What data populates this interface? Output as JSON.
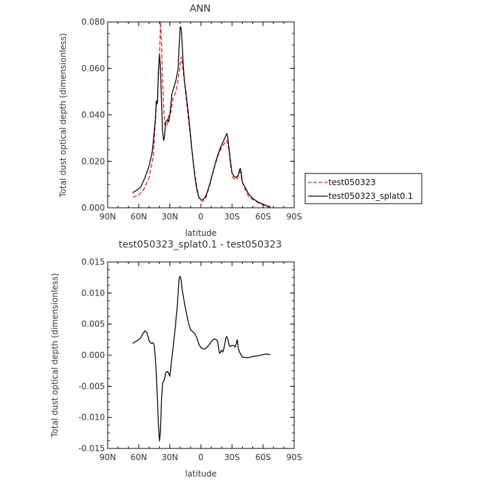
{
  "chart_data": [
    {
      "type": "line",
      "title": "ANN",
      "xlabel": "latitude",
      "ylabel": "Total dust optical depth (dimensionless)",
      "xlim": [
        90,
        -90
      ],
      "ylim": [
        0,
        0.08
      ],
      "x_ticks": [
        {
          "value": 90,
          "label": "90N"
        },
        {
          "value": 60,
          "label": "60N"
        },
        {
          "value": 30,
          "label": "30N"
        },
        {
          "value": 0,
          "label": "0"
        },
        {
          "value": -30,
          "label": "30S"
        },
        {
          "value": -60,
          "label": "60S"
        },
        {
          "value": -90,
          "label": "90S"
        }
      ],
      "y_ticks": [
        {
          "value": 0,
          "label": "0.000"
        },
        {
          "value": 0.02,
          "label": "0.020"
        },
        {
          "value": 0.04,
          "label": "0.040"
        },
        {
          "value": 0.06,
          "label": "0.060"
        },
        {
          "value": 0.08,
          "label": "0.080"
        }
      ],
      "legend": {
        "placement": "right"
      },
      "series": [
        {
          "name": "test050323",
          "color": "#e8131b",
          "dash": "dashed",
          "points": [
            [
              66,
              0.0045
            ],
            [
              60,
              0.0055
            ],
            [
              55,
              0.008
            ],
            [
              50,
              0.013
            ],
            [
              46,
              0.022
            ],
            [
              43,
              0.044
            ],
            [
              42,
              0.046
            ],
            [
              40,
              0.066
            ],
            [
              39,
              0.08
            ],
            [
              38,
              0.07
            ],
            [
              37,
              0.055
            ],
            [
              36,
              0.043
            ],
            [
              35,
              0.036
            ],
            [
              33,
              0.035
            ],
            [
              31,
              0.04
            ],
            [
              29,
              0.041
            ],
            [
              27,
              0.047
            ],
            [
              24,
              0.05
            ],
            [
              22,
              0.055
            ],
            [
              20,
              0.062
            ],
            [
              19,
              0.065
            ],
            [
              18,
              0.062
            ],
            [
              16,
              0.055
            ],
            [
              14,
              0.046
            ],
            [
              12,
              0.038
            ],
            [
              10,
              0.03
            ],
            [
              8,
              0.022
            ],
            [
              6,
              0.015
            ],
            [
              4,
              0.009
            ],
            [
              2,
              0.0045
            ],
            [
              0,
              0.003
            ],
            [
              -2,
              0.0028
            ],
            [
              -5,
              0.0045
            ],
            [
              -8,
              0.009
            ],
            [
              -11,
              0.014
            ],
            [
              -14,
              0.019
            ],
            [
              -17,
              0.023
            ],
            [
              -20,
              0.026
            ],
            [
              -23,
              0.028
            ],
            [
              -25,
              0.029
            ],
            [
              -27,
              0.025
            ],
            [
              -29,
              0.017
            ],
            [
              -31,
              0.013
            ],
            [
              -33,
              0.012
            ],
            [
              -35,
              0.0125
            ],
            [
              -37,
              0.015
            ],
            [
              -38,
              0.0155
            ],
            [
              -40,
              0.011
            ],
            [
              -43,
              0.0075
            ],
            [
              -46,
              0.005
            ],
            [
              -50,
              0.0035
            ],
            [
              -55,
              0.0022
            ],
            [
              -60,
              0.0012
            ],
            [
              -64,
              0.0005
            ],
            [
              -67,
              0.0002
            ]
          ]
        },
        {
          "name": "test050323_splat0.1",
          "color": "#000000",
          "dash": "solid",
          "points": [
            [
              66,
              0.0065
            ],
            [
              62,
              0.0075
            ],
            [
              58,
              0.009
            ],
            [
              54,
              0.013
            ],
            [
              50,
              0.018
            ],
            [
              47,
              0.024
            ],
            [
              45,
              0.033
            ],
            [
              44,
              0.038
            ],
            [
              43,
              0.046
            ],
            [
              42,
              0.045
            ],
            [
              41,
              0.058
            ],
            [
              40,
              0.066
            ],
            [
              39,
              0.06
            ],
            [
              38,
              0.045
            ],
            [
              37,
              0.033
            ],
            [
              36,
              0.029
            ],
            [
              35,
              0.031
            ],
            [
              34,
              0.037
            ],
            [
              32,
              0.038
            ],
            [
              31,
              0.037
            ],
            [
              30,
              0.04
            ],
            [
              28,
              0.049
            ],
            [
              26,
              0.052
            ],
            [
              24,
              0.055
            ],
            [
              22,
              0.06
            ],
            [
              21,
              0.07
            ],
            [
              20,
              0.078
            ],
            [
              19,
              0.077
            ],
            [
              18,
              0.07
            ],
            [
              17,
              0.061
            ],
            [
              16,
              0.055
            ],
            [
              14,
              0.048
            ],
            [
              12,
              0.04
            ],
            [
              10,
              0.031
            ],
            [
              8,
              0.022
            ],
            [
              6,
              0.014
            ],
            [
              4,
              0.008
            ],
            [
              2,
              0.0045
            ],
            [
              0,
              0.0035
            ],
            [
              -2,
              0.0035
            ],
            [
              -4,
              0.0045
            ],
            [
              -6,
              0.0065
            ],
            [
              -9,
              0.011
            ],
            [
              -12,
              0.016
            ],
            [
              -15,
              0.021
            ],
            [
              -18,
              0.025
            ],
            [
              -21,
              0.028
            ],
            [
              -24,
              0.031
            ],
            [
              -25,
              0.032
            ],
            [
              -26,
              0.03
            ],
            [
              -28,
              0.022
            ],
            [
              -30,
              0.015
            ],
            [
              -32,
              0.0135
            ],
            [
              -34,
              0.013
            ],
            [
              -36,
              0.014
            ],
            [
              -37,
              0.016
            ],
            [
              -38,
              0.017
            ],
            [
              -39,
              0.015
            ],
            [
              -40,
              0.011
            ],
            [
              -43,
              0.0085
            ],
            [
              -46,
              0.006
            ],
            [
              -50,
              0.004
            ],
            [
              -55,
              0.0025
            ],
            [
              -60,
              0.0015
            ],
            [
              -64,
              0.0008
            ],
            [
              -67,
              0.0004
            ]
          ]
        }
      ]
    },
    {
      "type": "line",
      "title": "test050323_splat0.1 - test050323",
      "xlabel": "latitude",
      "ylabel": "Total dust optical depth (dimensionless)",
      "xlim": [
        90,
        -90
      ],
      "ylim": [
        -0.015,
        0.015
      ],
      "x_ticks": [
        {
          "value": 90,
          "label": "90N"
        },
        {
          "value": 60,
          "label": "60N"
        },
        {
          "value": 30,
          "label": "30N"
        },
        {
          "value": 0,
          "label": "0"
        },
        {
          "value": -30,
          "label": "30S"
        },
        {
          "value": -60,
          "label": "60S"
        },
        {
          "value": -90,
          "label": "90S"
        }
      ],
      "y_ticks": [
        {
          "value": -0.015,
          "label": "-0.015"
        },
        {
          "value": -0.01,
          "label": "-0.010"
        },
        {
          "value": -0.005,
          "label": "-0.005"
        },
        {
          "value": 0,
          "label": "0.000"
        },
        {
          "value": 0.005,
          "label": "0.005"
        },
        {
          "value": 0.01,
          "label": "0.010"
        },
        {
          "value": 0.015,
          "label": "0.015"
        }
      ],
      "series": [
        {
          "color": "#000000",
          "dash": "solid",
          "points": [
            [
              66,
              0.0019
            ],
            [
              64,
              0.0021
            ],
            [
              61,
              0.0024
            ],
            [
              58,
              0.0028
            ],
            [
              56,
              0.0035
            ],
            [
              54,
              0.0039
            ],
            [
              52,
              0.0036
            ],
            [
              50,
              0.0023
            ],
            [
              48,
              0.0019
            ],
            [
              46,
              0.002
            ],
            [
              45,
              0.0015
            ],
            [
              44,
              -0.0005
            ],
            [
              43,
              -0.003
            ],
            [
              42,
              -0.007
            ],
            [
              41,
              -0.011
            ],
            [
              40,
              -0.0138
            ],
            [
              39,
              -0.012
            ],
            [
              38,
              -0.007
            ],
            [
              37,
              -0.0045
            ],
            [
              35,
              -0.0038
            ],
            [
              34,
              -0.0028
            ],
            [
              32,
              -0.0026
            ],
            [
              30,
              -0.0034
            ],
            [
              29,
              -0.0018
            ],
            [
              27,
              0.001
            ],
            [
              25,
              0.004
            ],
            [
              23,
              0.0075
            ],
            [
              22,
              0.01
            ],
            [
              21,
              0.0125
            ],
            [
              20,
              0.0127
            ],
            [
              19,
              0.012
            ],
            [
              18,
              0.0105
            ],
            [
              16,
              0.0085
            ],
            [
              14,
              0.0068
            ],
            [
              12,
              0.0052
            ],
            [
              10,
              0.0041
            ],
            [
              8,
              0.0038
            ],
            [
              6,
              0.0035
            ],
            [
              4,
              0.0028
            ],
            [
              2,
              0.0018
            ],
            [
              0,
              0.0012
            ],
            [
              -2,
              0.001
            ],
            [
              -4,
              0.001
            ],
            [
              -6,
              0.0013
            ],
            [
              -8,
              0.0017
            ],
            [
              -10,
              0.0022
            ],
            [
              -12,
              0.0025
            ],
            [
              -14,
              0.0026
            ],
            [
              -16,
              0.0023
            ],
            [
              -17,
              0.0012
            ],
            [
              -18,
              0.0003
            ],
            [
              -19,
              0.0005
            ],
            [
              -20,
              0.0008
            ],
            [
              -21,
              0.0005
            ],
            [
              -22,
              0.0009
            ],
            [
              -23,
              0.0018
            ],
            [
              -24,
              0.0028
            ],
            [
              -25,
              0.003
            ],
            [
              -26,
              0.0025
            ],
            [
              -27,
              0.0018
            ],
            [
              -28,
              0.0014
            ],
            [
              -30,
              0.0016
            ],
            [
              -32,
              0.0015
            ],
            [
              -33,
              0.0013
            ],
            [
              -34,
              0.0018
            ],
            [
              -35,
              0.0025
            ],
            [
              -36,
              0.0012
            ],
            [
              -37,
              0.0006
            ],
            [
              -38,
              0.0003
            ],
            [
              -40,
              -0.0003
            ],
            [
              -43,
              -0.0004
            ],
            [
              -46,
              -0.0004
            ],
            [
              -50,
              -0.0002
            ],
            [
              -55,
              -0.0001
            ],
            [
              -60,
              0.0001
            ],
            [
              -64,
              0.0002
            ],
            [
              -67,
              0.0001
            ]
          ]
        }
      ]
    }
  ]
}
